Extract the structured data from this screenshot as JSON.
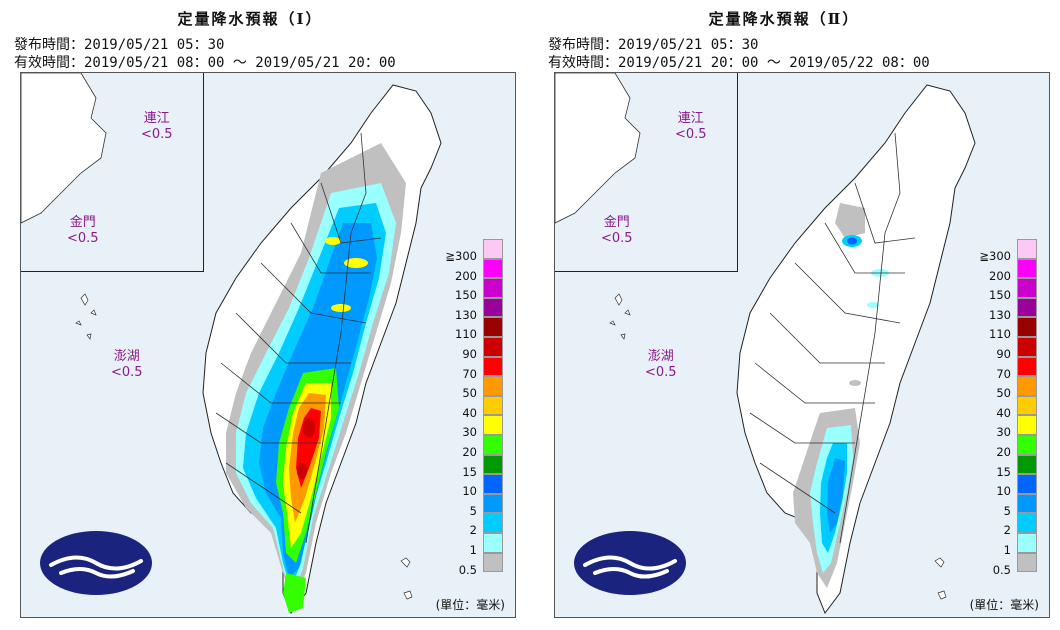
{
  "panels": [
    {
      "title": "定量降水預報（Ⅰ）",
      "issue_line": "發布時間：2019/05/21 05：30",
      "valid_line": "有效時間：2019/05/21 08：00 〜 2019/05/21 20：00",
      "inset_labels": {
        "matsu": "連江",
        "matsu_val": "<0.5",
        "kinmen": "金門",
        "kinmen_val": "<0.5"
      },
      "penghu_label": "澎湖",
      "penghu_val": "<0.5"
    },
    {
      "title": "定量降水預報（Ⅱ）",
      "issue_line": "發布時間：2019/05/21 05：30",
      "valid_line": "有效時間：2019/05/21 20：00 〜 2019/05/22 08：00",
      "inset_labels": {
        "matsu": "連江",
        "matsu_val": "<0.5",
        "kinmen": "金門",
        "kinmen_val": "<0.5"
      },
      "penghu_label": "澎湖",
      "penghu_val": "<0.5"
    }
  ],
  "legend": {
    "labels": [
      "≧300",
      "200",
      "150",
      "130",
      "110",
      "90",
      "70",
      "50",
      "40",
      "30",
      "20",
      "15",
      "10",
      "5",
      "2",
      "1",
      "0.5"
    ],
    "colors": [
      "#fdc8f5",
      "#fd00fd",
      "#cc00cc",
      "#9a009a",
      "#990000",
      "#cc0000",
      "#ff0000",
      "#ff9900",
      "#ffcc00",
      "#ffff00",
      "#33ff00",
      "#009900",
      "#0066ff",
      "#0099ff",
      "#00ccff",
      "#99ffff",
      "#c0c0c0"
    ]
  },
  "unit": "(單位：毫米)",
  "colors": {
    "sea": "#e8f1f8",
    "land": "#ffffff",
    "logo": "#1a237e"
  }
}
